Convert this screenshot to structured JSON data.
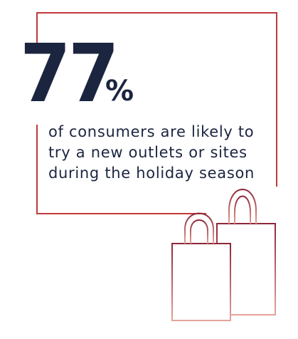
{
  "stat": {
    "number": "77",
    "unit": "%",
    "caption_lines": [
      "of consumers are likely to",
      "try a new outlets or sites",
      "during the holiday season"
    ]
  },
  "colors": {
    "navy": "#1b2540",
    "accent_red": "#c0393b",
    "bag_gradient_top": "#8e2638",
    "bag_gradient_bottom": "#e4a49a"
  },
  "icons": {
    "shopping_bags": "shopping-bags-icon"
  }
}
